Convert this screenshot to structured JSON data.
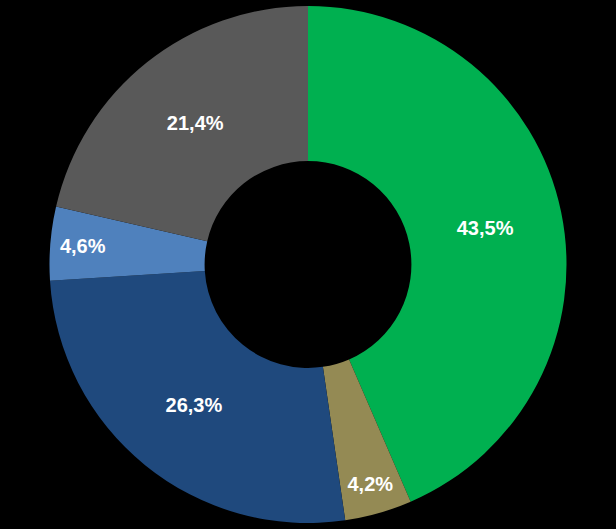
{
  "chart_data": {
    "type": "pie",
    "values": [
      43.5,
      4.2,
      26.3,
      4.6,
      21.4
    ],
    "value_labels": [
      "43,5%",
      "4,2%",
      "26,3%",
      "4,6%",
      "21,4%"
    ],
    "colors": [
      "#00b050",
      "#948a54",
      "#1f497d",
      "#4f81bd",
      "#595959"
    ],
    "data_labels": true
  }
}
